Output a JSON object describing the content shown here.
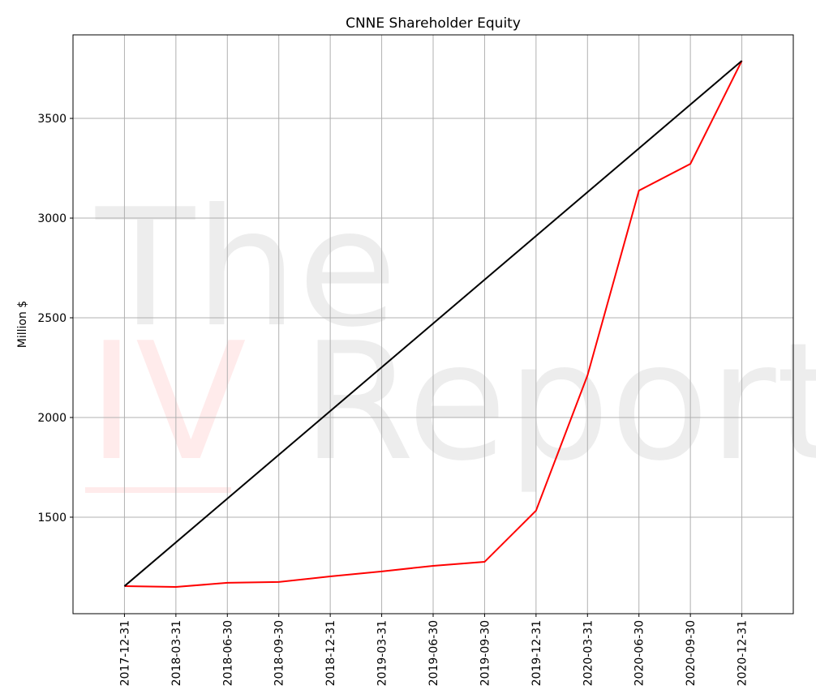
{
  "chart_data": {
    "type": "line",
    "title": "CNNE Shareholder Equity",
    "y_label": "Million $",
    "watermark": [
      "The",
      "IV",
      "Report"
    ],
    "categories": [
      "2017-12-31",
      "2018-03-31",
      "2018-06-30",
      "2018-09-30",
      "2018-12-31",
      "2019-03-31",
      "2019-06-30",
      "2019-09-30",
      "2019-12-31",
      "2020-03-31",
      "2020-06-30",
      "2020-09-30",
      "2020-12-31"
    ],
    "series": [
      {
        "color": "#ff0000",
        "x": [
          "2017-12-31",
          "2018-03-31",
          "2018-06-30",
          "2018-09-30",
          "2018-12-31",
          "2019-03-31",
          "2019-06-30",
          "2019-09-30",
          "2019-12-31",
          "2020-03-31",
          "2020-06-30",
          "2020-09-30",
          "2020-12-31"
        ],
        "values": [
          1154,
          1150,
          1171,
          1175,
          1203,
          1228,
          1256,
          1276,
          1533,
          2211,
          3138,
          3272,
          3789
        ]
      },
      {
        "color": "#000000",
        "x": [
          "2017-12-31",
          "2020-12-31"
        ],
        "values": [
          1154,
          3789
        ]
      }
    ],
    "ylim": [
      1016,
      3919
    ],
    "yticks": [
      1500,
      2000,
      2500,
      3000,
      3500
    ],
    "grid": true
  }
}
